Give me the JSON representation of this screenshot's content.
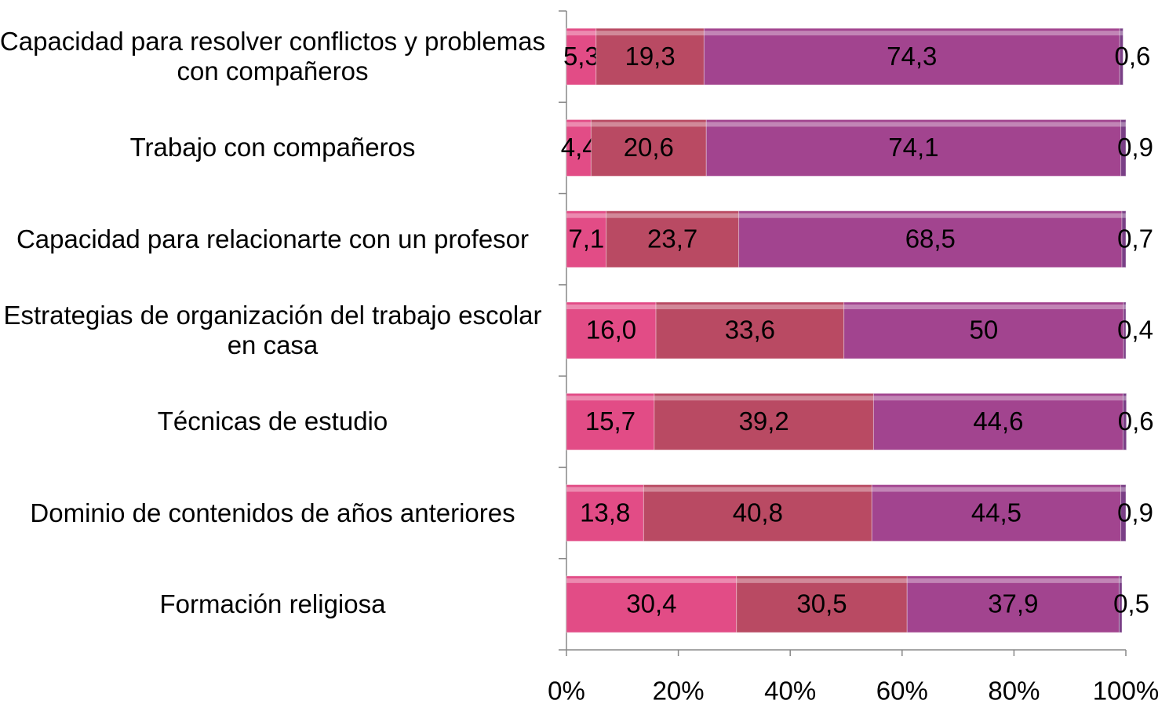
{
  "chart_data": {
    "type": "stacked-bar-horizontal",
    "categories": [
      "Capacidad para resolver conflictos y problemas con compañeros",
      "Trabajo con compañeros",
      "Capacidad para relacionarte con un profesor",
      "Estrategias de organización del trabajo escolar en casa",
      "Técnicas de estudio",
      "Dominio de contenidos de años anteriores",
      "Formación religiosa"
    ],
    "series": [
      {
        "color": "#e24c86",
        "values": [
          5.3,
          4.4,
          7.1,
          16.0,
          15.7,
          13.8,
          30.4
        ],
        "value_labels": [
          "5,3",
          "4,4",
          "7,1",
          "16,0",
          "15,7",
          "13,8",
          "30,4"
        ]
      },
      {
        "color": "#b94a63",
        "values": [
          19.3,
          20.6,
          23.7,
          33.6,
          39.2,
          40.8,
          30.5
        ],
        "value_labels": [
          "19,3",
          "20,6",
          "23,7",
          "33,6",
          "39,2",
          "40,8",
          "30,5"
        ]
      },
      {
        "color": "#a2448f",
        "values": [
          74.3,
          74.1,
          68.5,
          50,
          44.6,
          44.5,
          37.9
        ],
        "value_labels": [
          "74,3",
          "74,1",
          "68,5",
          "50",
          "44,6",
          "44,5",
          "37,9"
        ]
      },
      {
        "color": "#7a3f86",
        "values": [
          0.6,
          0.9,
          0.7,
          0.4,
          0.6,
          0.9,
          0.5
        ],
        "value_labels": [
          "0,6",
          "0,9",
          "0,7",
          "0,4",
          "0,6",
          "0,9",
          "0,5"
        ]
      }
    ],
    "xlim": [
      0,
      100
    ],
    "xticks": [
      {
        "value": 0,
        "label": "0%"
      },
      {
        "value": 20,
        "label": "20%"
      },
      {
        "value": 40,
        "label": "40%"
      },
      {
        "value": 60,
        "label": "60%"
      },
      {
        "value": 80,
        "label": "80%"
      },
      {
        "value": 100,
        "label": "100%"
      }
    ]
  }
}
